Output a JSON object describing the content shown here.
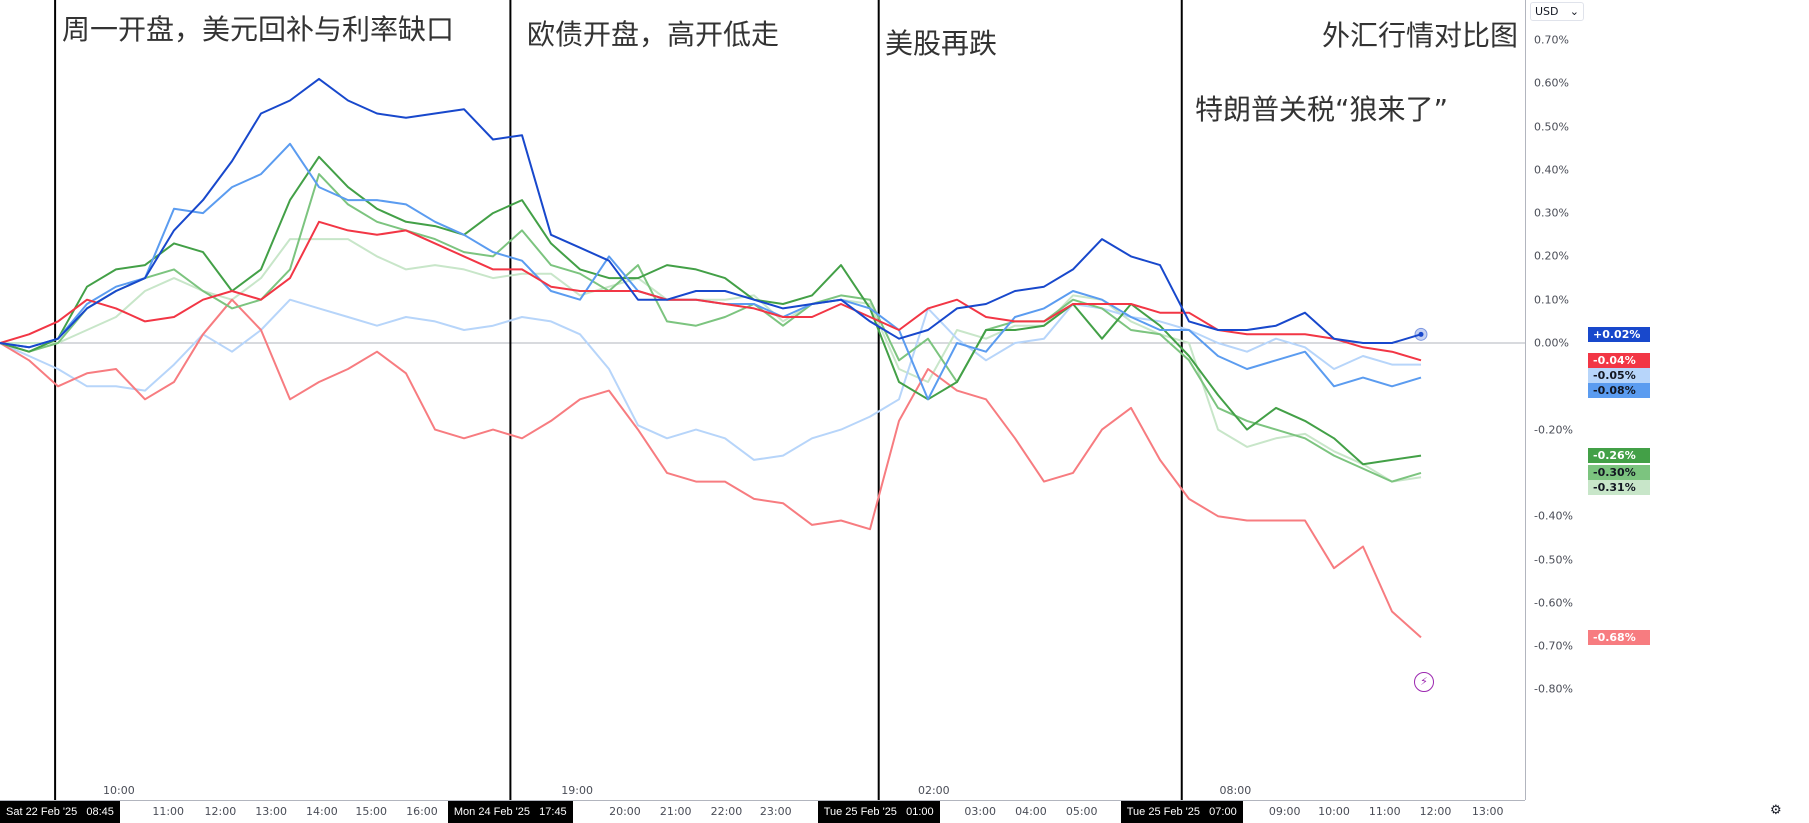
{
  "annotations": [
    "周一开盘，美元回补与利率缺口",
    "欧债开盘，高开低走",
    "美股再跌",
    "外汇行情对比图",
    "特朗普关税“狼来了”"
  ],
  "currency": "USD",
  "x_axis": {
    "ticks": [
      {
        "i": 4.1,
        "label": "10:00"
      },
      {
        "i": 5.8,
        "label": "11:00"
      },
      {
        "i": 7.6,
        "label": "12:00"
      },
      {
        "i": 9.35,
        "label": "13:00"
      },
      {
        "i": 11.1,
        "label": "14:00"
      },
      {
        "i": 12.8,
        "label": "15:00"
      },
      {
        "i": 14.55,
        "label": "16:00"
      },
      {
        "i": 19.9,
        "label": "19:00"
      },
      {
        "i": 21.55,
        "label": "20:00"
      },
      {
        "i": 23.3,
        "label": "21:00"
      },
      {
        "i": 25.05,
        "label": "22:00"
      },
      {
        "i": 26.75,
        "label": "23:00"
      },
      {
        "i": 32.2,
        "label": "02:00"
      },
      {
        "i": 33.8,
        "label": "03:00"
      },
      {
        "i": 35.55,
        "label": "04:00"
      },
      {
        "i": 37.3,
        "label": "05:00"
      },
      {
        "i": 42.6,
        "label": "08:00"
      },
      {
        "i": 44.3,
        "label": "09:00"
      },
      {
        "i": 46.0,
        "label": "10:00"
      },
      {
        "i": 47.75,
        "label": "11:00"
      },
      {
        "i": 49.5,
        "label": "12:00"
      },
      {
        "i": 51.3,
        "label": "13:00"
      }
    ],
    "markers": [
      {
        "i": 1.9,
        "label": "Sat 22 Feb '25   08:45"
      },
      {
        "i": 17.6,
        "label": "Mon 24 Feb '25   17:45"
      },
      {
        "i": 30.3,
        "label": "Tue 25 Feb '25   01:00"
      },
      {
        "i": 40.75,
        "label": "Tue 25 Feb '25   07:00"
      }
    ]
  },
  "chart_data": {
    "type": "line",
    "title": "外汇行情对比图",
    "ylabel": "USD %",
    "ylim": [
      -0.8,
      0.7
    ],
    "yticks": [
      "0.70%",
      "0.60%",
      "0.50%",
      "0.40%",
      "0.30%",
      "0.20%",
      "0.10%",
      "0.00%",
      "-0.20%",
      "-0.40%",
      "-0.50%",
      "-0.60%",
      "-0.70%",
      "-0.80%"
    ],
    "ytick_values": [
      0.7,
      0.6,
      0.5,
      0.4,
      0.3,
      0.2,
      0.1,
      0.0,
      -0.2,
      -0.4,
      -0.5,
      -0.6,
      -0.7,
      -0.8
    ],
    "x": "point index 0-49",
    "series": [
      {
        "name": "series-light-green",
        "color": "#c8e6c9",
        "last": "-0.31%",
        "text": "#131722",
        "values": [
          0,
          0,
          0,
          0.03,
          0.06,
          0.12,
          0.15,
          0.12,
          0.1,
          0.15,
          0.24,
          0.24,
          0.24,
          0.2,
          0.17,
          0.18,
          0.17,
          0.15,
          0.16,
          0.16,
          0.11,
          0.13,
          0.15,
          0.1,
          0.1,
          0.1,
          0.11,
          0.05,
          0.09,
          0.1,
          0.09,
          -0.06,
          -0.09,
          0.03,
          0.01,
          0.04,
          0.04,
          0.11,
          0.1,
          0.05,
          0.02,
          0,
          -0.2,
          -0.24,
          -0.22,
          -0.21,
          -0.25,
          -0.28,
          -0.32,
          -0.31
        ]
      },
      {
        "name": "series-light-blue",
        "color": "#b7d5fa",
        "last": "-0.05%",
        "text": "#131722",
        "values": [
          0,
          -0.03,
          -0.06,
          -0.1,
          -0.1,
          -0.11,
          -0.05,
          0.02,
          -0.02,
          0.03,
          0.1,
          0.08,
          0.06,
          0.04,
          0.06,
          0.05,
          0.03,
          0.04,
          0.06,
          0.05,
          0.02,
          -0.06,
          -0.19,
          -0.22,
          -0.2,
          -0.22,
          -0.27,
          -0.26,
          -0.22,
          -0.2,
          -0.17,
          -0.13,
          0.08,
          0.01,
          -0.04,
          0,
          0.01,
          0.09,
          0.08,
          0.06,
          0.05,
          0.03,
          0,
          -0.02,
          0.01,
          -0.01,
          -0.06,
          -0.03,
          -0.05,
          -0.05
        ]
      },
      {
        "name": "series-pink",
        "color": "#f77c80",
        "last": "-0.68%",
        "text": "#ffffff",
        "values": [
          0,
          -0.04,
          -0.1,
          -0.07,
          -0.06,
          -0.13,
          -0.09,
          0.02,
          0.1,
          0.03,
          -0.13,
          -0.09,
          -0.06,
          -0.02,
          -0.07,
          -0.2,
          -0.22,
          -0.2,
          -0.22,
          -0.18,
          -0.13,
          -0.11,
          -0.2,
          -0.3,
          -0.32,
          -0.32,
          -0.36,
          -0.37,
          -0.42,
          -0.41,
          -0.43,
          -0.18,
          -0.06,
          -0.11,
          -0.13,
          -0.22,
          -0.32,
          -0.3,
          -0.2,
          -0.15,
          -0.27,
          -0.36,
          -0.4,
          -0.41,
          -0.41,
          -0.41,
          -0.52,
          -0.47,
          -0.62,
          -0.68
        ]
      },
      {
        "name": "series-mid-green",
        "color": "#7cc47f",
        "last": "-0.30%",
        "text": "#131722",
        "values": [
          0,
          -0.02,
          0,
          0.08,
          0.12,
          0.15,
          0.17,
          0.12,
          0.08,
          0.1,
          0.17,
          0.39,
          0.32,
          0.28,
          0.26,
          0.24,
          0.21,
          0.2,
          0.26,
          0.18,
          0.16,
          0.12,
          0.18,
          0.05,
          0.04,
          0.06,
          0.09,
          0.04,
          0.09,
          0.11,
          0.1,
          -0.04,
          0.01,
          -0.09,
          0.03,
          0.05,
          0.05,
          0.1,
          0.08,
          0.03,
          0.02,
          -0.04,
          -0.15,
          -0.18,
          -0.2,
          -0.22,
          -0.26,
          -0.29,
          -0.32,
          -0.3
        ]
      },
      {
        "name": "series-dark-green",
        "color": "#43a047",
        "last": "-0.26%",
        "text": "#ffffff",
        "values": [
          0,
          -0.02,
          0.01,
          0.13,
          0.17,
          0.18,
          0.23,
          0.21,
          0.12,
          0.17,
          0.33,
          0.43,
          0.36,
          0.31,
          0.28,
          0.27,
          0.25,
          0.3,
          0.33,
          0.23,
          0.17,
          0.15,
          0.15,
          0.18,
          0.17,
          0.15,
          0.1,
          0.09,
          0.11,
          0.18,
          0.08,
          -0.09,
          -0.13,
          -0.09,
          0.03,
          0.03,
          0.04,
          0.09,
          0.01,
          0.09,
          0.04,
          -0.03,
          -0.12,
          -0.2,
          -0.15,
          -0.18,
          -0.22,
          -0.28,
          -0.27,
          -0.26
        ]
      },
      {
        "name": "series-mid-blue",
        "color": "#5b9cf0",
        "last": "-0.08%",
        "text": "#131722",
        "values": [
          0,
          -0.01,
          0.01,
          0.09,
          0.13,
          0.15,
          0.31,
          0.3,
          0.36,
          0.39,
          0.46,
          0.36,
          0.33,
          0.33,
          0.32,
          0.28,
          0.25,
          0.21,
          0.19,
          0.12,
          0.1,
          0.2,
          0.12,
          0.1,
          0.1,
          0.09,
          0.09,
          0.06,
          0.09,
          0.1,
          0.08,
          0.03,
          -0.13,
          0,
          -0.02,
          0.06,
          0.08,
          0.12,
          0.1,
          0.06,
          0.03,
          0.03,
          -0.03,
          -0.06,
          -0.04,
          -0.02,
          -0.1,
          -0.08,
          -0.1,
          -0.08
        ]
      },
      {
        "name": "series-red",
        "color": "#f23645",
        "last": "-0.04%",
        "text": "#ffffff",
        "values": [
          0,
          0.02,
          0.05,
          0.1,
          0.08,
          0.05,
          0.06,
          0.1,
          0.12,
          0.1,
          0.15,
          0.28,
          0.26,
          0.25,
          0.26,
          0.23,
          0.2,
          0.17,
          0.17,
          0.13,
          0.12,
          0.12,
          0.12,
          0.1,
          0.1,
          0.09,
          0.08,
          0.06,
          0.06,
          0.09,
          0.06,
          0.03,
          0.08,
          0.1,
          0.06,
          0.05,
          0.05,
          0.09,
          0.09,
          0.09,
          0.07,
          0.07,
          0.03,
          0.02,
          0.02,
          0.02,
          0.01,
          -0.01,
          -0.02,
          -0.04
        ]
      },
      {
        "name": "series-dark-blue",
        "color": "#1848cc",
        "last": "+0.02%",
        "text": "#ffffff",
        "values": [
          0,
          -0.01,
          0.01,
          0.08,
          0.12,
          0.15,
          0.26,
          0.33,
          0.42,
          0.53,
          0.56,
          0.61,
          0.56,
          0.53,
          0.52,
          0.53,
          0.54,
          0.47,
          0.48,
          0.25,
          0.22,
          0.19,
          0.1,
          0.1,
          0.12,
          0.12,
          0.1,
          0.08,
          0.09,
          0.1,
          0.05,
          0.01,
          0.03,
          0.08,
          0.09,
          0.12,
          0.13,
          0.17,
          0.24,
          0.2,
          0.18,
          0.05,
          0.03,
          0.03,
          0.04,
          0.07,
          0.01,
          0,
          0,
          0.02
        ]
      }
    ]
  }
}
